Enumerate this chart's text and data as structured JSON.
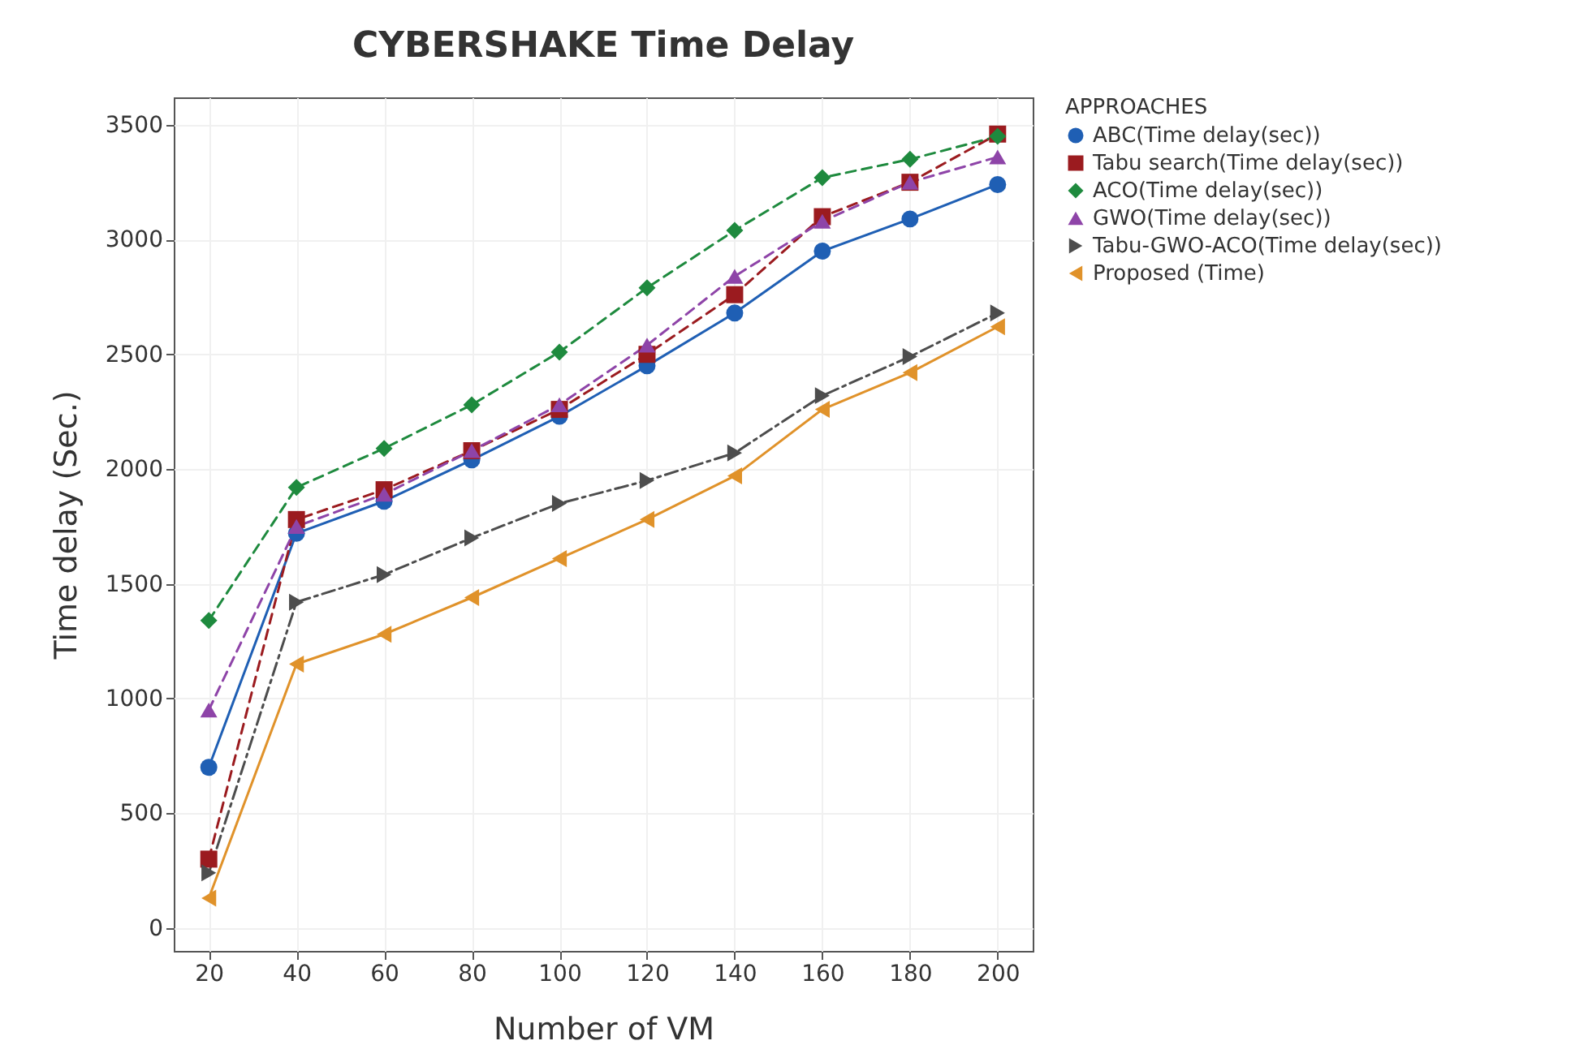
{
  "chart_data": {
    "type": "line",
    "title": "CYBERSHAKE Time Delay",
    "xlabel": "Number of VM",
    "ylabel": "Time delay (Sec.)",
    "legend_title": "APPROACHES",
    "legend": "right",
    "grid": true,
    "x": [
      20,
      40,
      60,
      80,
      100,
      120,
      140,
      160,
      180,
      200
    ],
    "xlim": [
      12,
      208
    ],
    "xticks": [
      20,
      40,
      60,
      80,
      100,
      120,
      140,
      160,
      180,
      200
    ],
    "ylim": [
      -100,
      3620
    ],
    "yticks": [
      0,
      500,
      1000,
      1500,
      2000,
      2500,
      3000,
      3500
    ],
    "series": [
      {
        "name": "ABC(Time delay(sec))",
        "color": "#1f5fb4",
        "marker": "circle",
        "line_style": "solid",
        "values": [
          700,
          1720,
          1860,
          2040,
          2230,
          2450,
          2680,
          2950,
          3090,
          3240
        ]
      },
      {
        "name": "Tabu search(Time delay(sec))",
        "color": "#9b1b1f",
        "marker": "square",
        "line_style": "dashed",
        "values": [
          300,
          1780,
          1910,
          2080,
          2260,
          2500,
          2760,
          3100,
          3250,
          3460
        ]
      },
      {
        "name": "ACO(Time delay(sec))",
        "color": "#1e8a3e",
        "marker": "diamond",
        "line_style": "dashed",
        "values": [
          1340,
          1920,
          2090,
          2280,
          2510,
          2790,
          3040,
          3270,
          3350,
          3450
        ]
      },
      {
        "name": "GWO(Time delay(sec))",
        "color": "#8e44a8",
        "marker": "triangle",
        "line_style": "dashed",
        "values": [
          950,
          1750,
          1890,
          2080,
          2280,
          2540,
          2840,
          3080,
          3250,
          3360
        ]
      },
      {
        "name": "Tabu-GWO-ACO(Time delay(sec))",
        "color": "#4d4d4d",
        "marker": "triangle-right",
        "line_style": "dashdot",
        "values": [
          240,
          1420,
          1540,
          1700,
          1850,
          1950,
          2070,
          2320,
          2490,
          2680
        ]
      },
      {
        "name": "Proposed (Time)",
        "color": "#e0922a",
        "marker": "triangle-left",
        "line_style": "solid",
        "values": [
          130,
          1150,
          1280,
          1440,
          1610,
          1780,
          1970,
          2260,
          2420,
          2620
        ]
      }
    ]
  }
}
